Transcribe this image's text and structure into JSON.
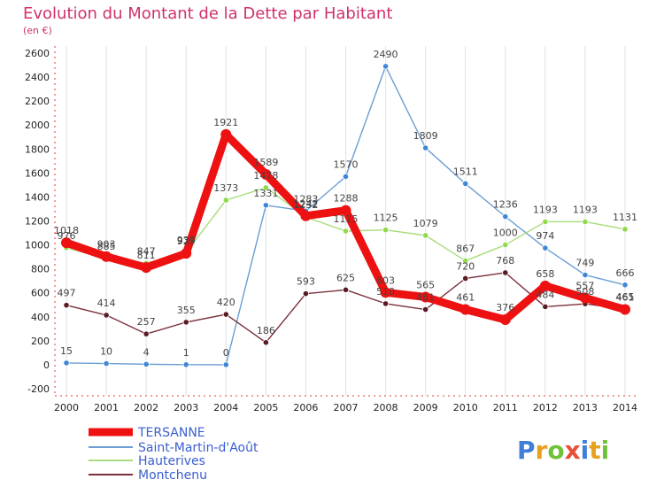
{
  "chart_data": {
    "type": "line",
    "title": "Evolution du Montant de la Dette par Habitant",
    "subtitle": "(en €)",
    "x": [
      "2000",
      "2001",
      "2002",
      "2003",
      "2004",
      "2005",
      "2006",
      "2007",
      "2008",
      "2009",
      "2010",
      "2011",
      "2012",
      "2013",
      "2014"
    ],
    "ylim": [
      -200,
      2600
    ],
    "yticks": [
      -200,
      0,
      200,
      400,
      600,
      800,
      1000,
      1200,
      1400,
      1600,
      1800,
      2000,
      2200,
      2400,
      2600
    ],
    "grid": "vertical",
    "legend_position": "bottom-left",
    "series": [
      {
        "name": "TERSANNE",
        "color": "#ee1111",
        "marker": "#ee1111",
        "values": [
          1018,
          903,
          811,
          929,
          1921,
          1589,
          1242,
          1288,
          603,
          565,
          461,
          376,
          658,
          557,
          461
        ]
      },
      {
        "name": "Saint-Martin-d'Août",
        "color": "#6b9ed4",
        "marker": "#3f87d6",
        "values": [
          15,
          10,
          4,
          1,
          0,
          1331,
          1283,
          1570,
          2490,
          1809,
          1511,
          1236,
          974,
          749,
          666
        ]
      },
      {
        "name": "Hauterives",
        "color": "#a8dc7c",
        "marker": "#8fd94a",
        "values": [
          976,
          885,
          847,
          937,
          1373,
          1478,
          1232,
          1115,
          1125,
          1079,
          867,
          1000,
          1193,
          1193,
          1131
        ]
      },
      {
        "name": "Montchenu",
        "color": "#7a2f3a",
        "marker": "#5a1a22",
        "values": [
          497,
          414,
          257,
          355,
          420,
          186,
          593,
          625,
          510,
          461,
          720,
          768,
          484,
          508,
          465
        ]
      }
    ]
  },
  "logo": {
    "text": "Proxiti"
  }
}
